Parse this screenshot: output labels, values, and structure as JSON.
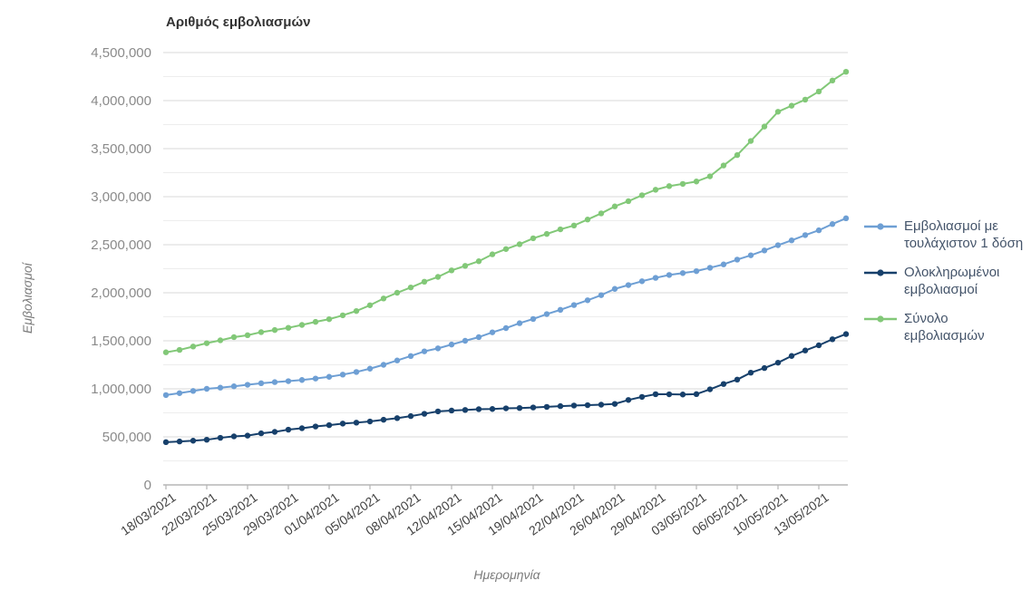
{
  "chart": {
    "title": "Αριθμός εμβολιασμών",
    "y_axis_title": "Εμβολιασμοί",
    "x_axis_title": "Ημερομηνία"
  },
  "chart_data": {
    "type": "line",
    "title": "Αριθμός εμβολιασμών",
    "xlabel": "Ημερομηνία",
    "ylabel": "Εμβολιασμοί",
    "grid": "horizontal-only",
    "legend_position": "right",
    "ylim": [
      0,
      4500000
    ],
    "y_major_step": 500000,
    "y_minor_step": 250000,
    "y_tick_labels": [
      "0",
      "500,000",
      "1,000,000",
      "1,500,000",
      "2,000,000",
      "2,500,000",
      "3,000,000",
      "3,500,000",
      "4,000,000",
      "4,500,000"
    ],
    "x_label_every": 3,
    "x_tick_labels": [
      "18/03/2021",
      "22/03/2021",
      "25/03/2021",
      "29/03/2021",
      "01/04/2021",
      "05/04/2021",
      "08/04/2021",
      "12/04/2021",
      "15/04/2021",
      "19/04/2021",
      "22/04/2021",
      "26/04/2021",
      "29/04/2021",
      "03/05/2021",
      "06/05/2021",
      "10/05/2021",
      "13/05/2021"
    ],
    "x": [
      "18/03/2021",
      "19/03/2021",
      "20/03/2021",
      "22/03/2021",
      "23/03/2021",
      "24/03/2021",
      "25/03/2021",
      "26/03/2021",
      "27/03/2021",
      "29/03/2021",
      "30/03/2021",
      "31/03/2021",
      "01/04/2021",
      "02/04/2021",
      "03/04/2021",
      "05/04/2021",
      "06/04/2021",
      "07/04/2021",
      "08/04/2021",
      "09/04/2021",
      "10/04/2021",
      "12/04/2021",
      "13/04/2021",
      "14/04/2021",
      "15/04/2021",
      "16/04/2021",
      "17/04/2021",
      "19/04/2021",
      "20/04/2021",
      "21/04/2021",
      "22/04/2021",
      "23/04/2021",
      "24/04/2021",
      "26/04/2021",
      "27/04/2021",
      "28/04/2021",
      "29/04/2021",
      "30/04/2021",
      "01/05/2021",
      "03/05/2021",
      "04/05/2021",
      "05/05/2021",
      "06/05/2021",
      "07/05/2021",
      "08/05/2021",
      "10/05/2021",
      "11/05/2021",
      "12/05/2021",
      "13/05/2021",
      "14/05/2021",
      "15/05/2021"
    ],
    "series": [
      {
        "name": "Εμβολιασμοί με τουλάχιστον 1 δόση",
        "color": "#6E9FD4",
        "values": [
          935000,
          955000,
          978000,
          1000000,
          1012000,
          1026000,
          1042000,
          1058000,
          1070000,
          1080000,
          1092000,
          1107000,
          1125000,
          1148000,
          1175000,
          1210000,
          1250000,
          1295000,
          1341000,
          1390000,
          1421000,
          1461000,
          1500000,
          1538000,
          1588000,
          1632000,
          1683000,
          1727000,
          1778000,
          1822000,
          1872000,
          1922000,
          1975000,
          2040000,
          2080000,
          2120000,
          2155000,
          2185000,
          2205000,
          2225000,
          2260000,
          2295000,
          2345000,
          2390000,
          2440000,
          2495000,
          2545000,
          2600000,
          2650000,
          2715000,
          2775000
        ]
      },
      {
        "name": "Ολοκληρωμένοι εμβολιασμοί",
        "color": "#17406B",
        "values": [
          445000,
          452000,
          460000,
          470000,
          490000,
          505000,
          513000,
          537000,
          552000,
          575000,
          590000,
          608000,
          622000,
          638000,
          648000,
          660000,
          678000,
          695000,
          716000,
          740000,
          765000,
          774000,
          780000,
          788000,
          790000,
          797000,
          800000,
          806000,
          812000,
          820000,
          826000,
          830000,
          835000,
          843000,
          884000,
          916000,
          944000,
          943000,
          941000,
          945000,
          995000,
          1050000,
          1096000,
          1168000,
          1216000,
          1272000,
          1342000,
          1399000,
          1453000,
          1516000,
          1570000
        ]
      },
      {
        "name": "Σύνολο εμβολιασμών",
        "color": "#82C878",
        "values": [
          1380000,
          1405000,
          1440000,
          1475000,
          1505000,
          1538000,
          1558000,
          1590000,
          1612000,
          1635000,
          1665000,
          1697000,
          1725000,
          1765000,
          1810000,
          1870000,
          1940000,
          2000000,
          2055000,
          2115000,
          2165000,
          2233000,
          2280000,
          2328000,
          2400000,
          2455000,
          2505000,
          2567000,
          2612000,
          2660000,
          2700000,
          2762000,
          2826000,
          2899000,
          2953000,
          3015000,
          3072000,
          3110000,
          3133000,
          3158000,
          3212000,
          3325000,
          3433000,
          3580000,
          3730000,
          3884000,
          3947000,
          4010000,
          4095000,
          4209000,
          4300000
        ]
      }
    ],
    "colors": {
      "major_gridline": "#d9d9d9",
      "minor_gridline": "#ededed",
      "baseline": "#b5b5b5",
      "y_tick_label": "#8a8a8a",
      "x_tick_label": "#424242",
      "title": "#333333",
      "axis_title": "#7b7b7b",
      "legend_text": "#44546A"
    }
  }
}
